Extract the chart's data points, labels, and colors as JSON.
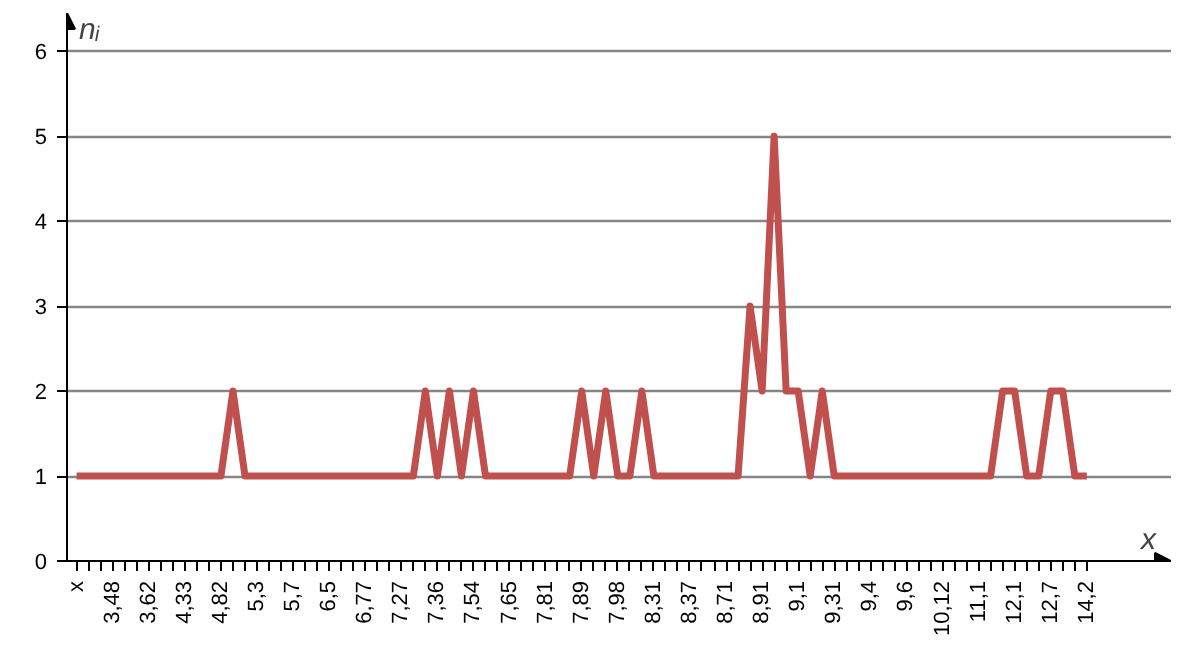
{
  "chart_data": {
    "type": "line",
    "xlabel": "x",
    "ylabel": "nᵢ",
    "categories": [
      "x",
      null,
      null,
      "3,48",
      null,
      null,
      "3,62",
      null,
      null,
      "4,33",
      null,
      null,
      "4,82",
      null,
      null,
      "5,3",
      null,
      null,
      "5,7",
      null,
      null,
      "6,5",
      null,
      null,
      "6,77",
      null,
      null,
      "7,27",
      null,
      null,
      "7,36",
      null,
      null,
      "7,54",
      null,
      null,
      "7,65",
      null,
      null,
      "7,81",
      null,
      null,
      "7,89",
      null,
      null,
      "7,98",
      null,
      null,
      "8,31",
      null,
      null,
      "8,37",
      null,
      null,
      "8,71",
      null,
      null,
      "8,91",
      null,
      null,
      "9,1",
      null,
      null,
      "9,31",
      null,
      null,
      "9,4",
      null,
      null,
      "9,6",
      null,
      null,
      "10,12",
      null,
      null,
      "11,1",
      null,
      null,
      "12,1",
      null,
      null,
      "12,7",
      null,
      null,
      "14,2"
    ],
    "series": [
      {
        "color": "#c0504d",
        "values": [
          1,
          1,
          1,
          1,
          1,
          1,
          1,
          1,
          1,
          1,
          1,
          1,
          1,
          2,
          1,
          1,
          1,
          1,
          1,
          1,
          1,
          1,
          1,
          1,
          1,
          1,
          1,
          1,
          1,
          2,
          1,
          2,
          1,
          2,
          1,
          1,
          1,
          1,
          1,
          1,
          1,
          1,
          2,
          1,
          2,
          1,
          1,
          2,
          1,
          1,
          1,
          1,
          1,
          1,
          1,
          1,
          3,
          2,
          5,
          2,
          2,
          1,
          2,
          1,
          1,
          1,
          1,
          1,
          1,
          1,
          1,
          1,
          1,
          1,
          1,
          1,
          1,
          2,
          2,
          1,
          1,
          2,
          2,
          1,
          1
        ]
      }
    ],
    "ylim": [
      0,
      6
    ],
    "yticks": [
      0,
      1,
      2,
      3,
      4,
      5,
      6
    ],
    "grid": "y",
    "marker": "none",
    "line_style": "solid"
  }
}
